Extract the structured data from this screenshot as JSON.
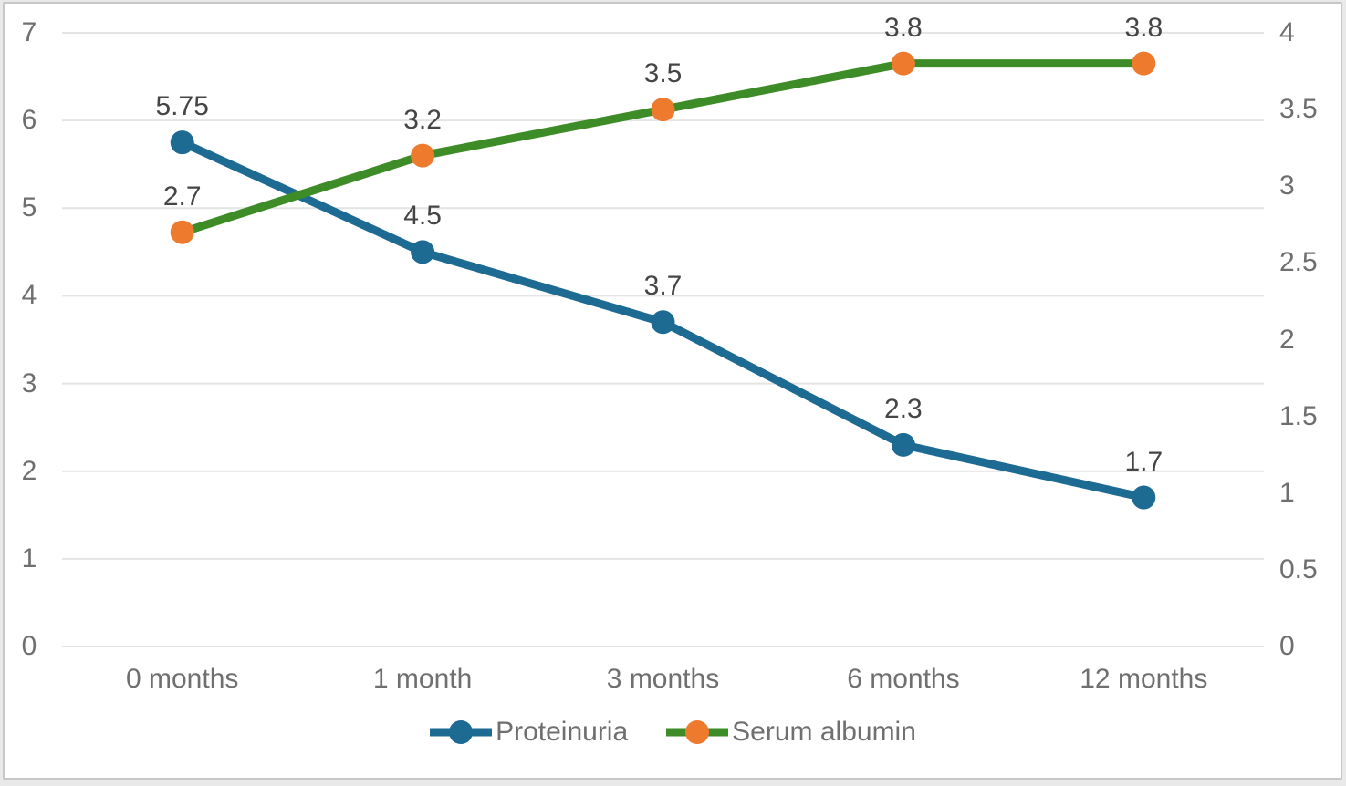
{
  "chart_data": {
    "type": "line",
    "title": "",
    "categories": [
      "0 months",
      "1 month",
      "3 months",
      "6 months",
      "12 months"
    ],
    "series": [
      {
        "name": "Proteinuria",
        "axis": "left",
        "line_color": "#1d6a93",
        "marker_color": "#1d6a93",
        "values": [
          5.75,
          4.5,
          3.7,
          2.3,
          1.7
        ],
        "data_labels": [
          "5.75",
          "4.5",
          "3.7",
          "2.3",
          "1.7"
        ]
      },
      {
        "name": "Serum albumin",
        "axis": "right",
        "line_color": "#3e8c28",
        "marker_color": "#ee7a2d",
        "values": [
          2.7,
          3.2,
          3.5,
          3.8,
          3.8
        ],
        "data_labels": [
          "2.7",
          "3.2",
          "3.5",
          "3.8",
          "3.8"
        ]
      }
    ],
    "left_axis": {
      "min": 0,
      "max": 7,
      "step": 1,
      "tick_labels": [
        "0",
        "1",
        "2",
        "3",
        "4",
        "5",
        "6",
        "7"
      ]
    },
    "right_axis": {
      "min": 0,
      "max": 4,
      "step": 0.5,
      "tick_labels": [
        "0",
        "0.5",
        "1",
        "1.5",
        "2",
        "2.5",
        "3",
        "3.5",
        "4"
      ]
    },
    "grid": true,
    "legend_position": "bottom",
    "xlabel": "",
    "ylabel_left": "",
    "ylabel_right": ""
  },
  "legend": {
    "items": [
      {
        "label": "Proteinuria"
      },
      {
        "label": "Serum albumin"
      }
    ]
  },
  "colors": {
    "grid": "#e4e4e4",
    "axis_text": "#6f6f6f",
    "data_label_text": "#454545",
    "background": "#ffffff",
    "border": "#c7c7c7"
  }
}
